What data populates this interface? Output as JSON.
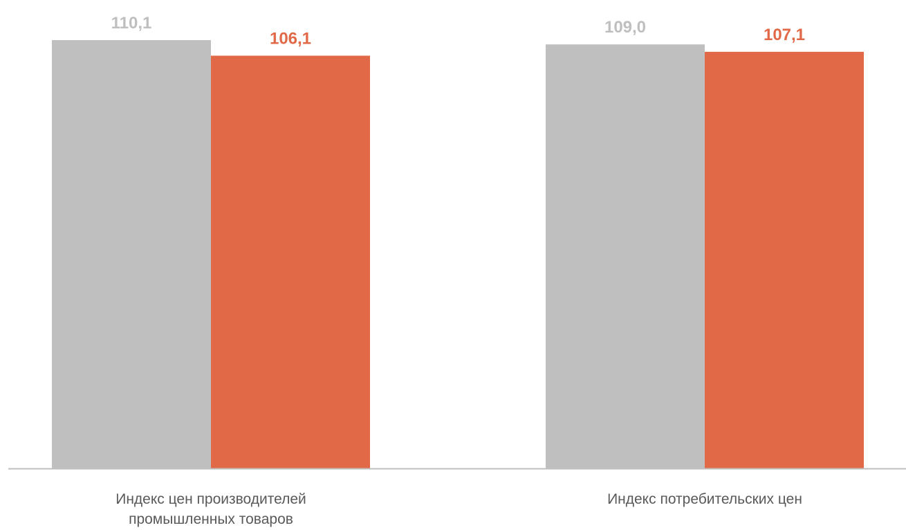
{
  "chart_data": {
    "type": "bar",
    "categories": [
      [
        "Индекс цен производителей",
        "промышленных товаров"
      ],
      [
        "Индекс потребительских цен"
      ]
    ],
    "series": [
      {
        "values": [
          110.1,
          109.0
        ],
        "labels": [
          "110,1",
          "109,0"
        ],
        "color": "#bfbfbf"
      },
      {
        "values": [
          106.1,
          107.1
        ],
        "labels": [
          "106,1",
          "107,1"
        ],
        "color": "#e26947"
      }
    ],
    "ylim": [
      0,
      114
    ],
    "grid": false,
    "legend": "none",
    "axis_color": "#bfbfbf"
  }
}
